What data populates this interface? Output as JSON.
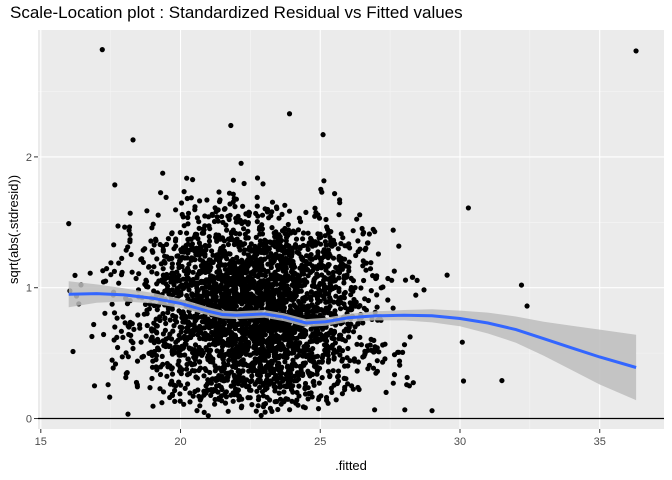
{
  "chart_data": {
    "type": "scatter",
    "title": "Scale-Location plot : Standardized Residual vs Fitted values",
    "xlabel": ".fitted",
    "ylabel": "sqrt(abs(.stdresid))",
    "xlim": [
      14.9,
      37.3
    ],
    "ylim": [
      -0.08,
      2.97
    ],
    "x_ticks": [
      15,
      20,
      25,
      30,
      35
    ],
    "y_ticks": [
      0,
      1,
      2
    ],
    "grid": true,
    "hline": 0,
    "outliers": [
      {
        "x": 17.2,
        "y": 2.82
      },
      {
        "x": 36.3,
        "y": 2.81
      },
      {
        "x": 23.9,
        "y": 2.33
      },
      {
        "x": 21.8,
        "y": 2.24
      },
      {
        "x": 25.1,
        "y": 2.17
      },
      {
        "x": 18.3,
        "y": 2.13
      },
      {
        "x": 30.3,
        "y": 1.61
      },
      {
        "x": 32.2,
        "y": 1.02
      },
      {
        "x": 32.4,
        "y": 0.86
      },
      {
        "x": 31.5,
        "y": 0.29
      },
      {
        "x": 16.0,
        "y": 1.49
      },
      {
        "x": 29.0,
        "y": 0.06
      }
    ],
    "smooth": {
      "x": [
        16.0,
        17.0,
        18.0,
        19.0,
        20.0,
        21.0,
        21.5,
        22.0,
        23.0,
        23.7,
        24.5,
        25.2,
        26.0,
        27.0,
        28.0,
        29.0,
        30.0,
        31.0,
        32.0,
        33.0,
        34.0,
        35.0,
        36.3
      ],
      "y": [
        0.95,
        0.955,
        0.945,
        0.92,
        0.88,
        0.82,
        0.795,
        0.79,
        0.8,
        0.775,
        0.73,
        0.74,
        0.77,
        0.785,
        0.79,
        0.785,
        0.765,
        0.73,
        0.68,
        0.61,
        0.54,
        0.47,
        0.39
      ],
      "band": [
        0.1,
        0.07,
        0.05,
        0.04,
        0.035,
        0.03,
        0.03,
        0.03,
        0.03,
        0.03,
        0.03,
        0.03,
        0.03,
        0.035,
        0.04,
        0.05,
        0.06,
        0.08,
        0.1,
        0.13,
        0.17,
        0.21,
        0.25
      ]
    },
    "colors": {
      "panel": "#ebebeb",
      "grid_major": "#ffffff",
      "grid_minor": "#f5f5f5",
      "points": "#000000",
      "smooth_line": "#3366ff",
      "band": "#bdbdbd"
    }
  }
}
